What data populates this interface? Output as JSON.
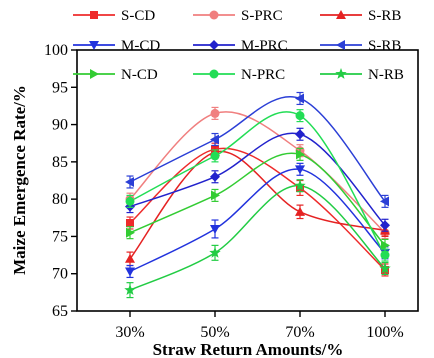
{
  "chart_data": {
    "type": "line",
    "title": "",
    "xlabel": "Straw Return Amounts/%",
    "ylabel": "Maize Emergence Rate/%",
    "categories": [
      "30%",
      "50%",
      "70%",
      "100%"
    ],
    "ylim": [
      65,
      100
    ],
    "yticks": [
      65,
      70,
      75,
      80,
      85,
      90,
      95,
      100
    ],
    "grid": false,
    "legend_position": "top",
    "series": [
      {
        "name": "S-CD",
        "color": "#ee2b2b",
        "marker": "square",
        "values": [
          76.8,
          86.7,
          81.5,
          70.5
        ],
        "error": [
          0.8,
          0.8,
          1.0,
          0.8
        ]
      },
      {
        "name": "S-PRC",
        "color": "#f07f7f",
        "marker": "circle",
        "values": [
          80.0,
          91.5,
          86.5,
          75.5
        ],
        "error": [
          0.8,
          0.8,
          0.8,
          0.8
        ]
      },
      {
        "name": "S-RB",
        "color": "#e52222",
        "marker": "triangle-up",
        "values": [
          72.0,
          86.3,
          78.3,
          75.8
        ],
        "error": [
          0.9,
          0.8,
          0.9,
          0.8
        ]
      },
      {
        "name": "M-CD",
        "color": "#2233dd",
        "marker": "triangle-down",
        "values": [
          70.3,
          76.0,
          84.0,
          72.8
        ],
        "error": [
          0.8,
          1.2,
          0.8,
          0.8
        ]
      },
      {
        "name": "M-PRC",
        "color": "#2222cc",
        "marker": "diamond",
        "values": [
          79.0,
          83.0,
          88.7,
          76.5
        ],
        "error": [
          0.8,
          0.8,
          0.8,
          0.8
        ]
      },
      {
        "name": "S-RB",
        "color": "#2b3fd6",
        "marker": "triangle-left",
        "values": [
          82.3,
          88.0,
          93.5,
          79.7
        ],
        "error": [
          0.8,
          0.8,
          0.8,
          0.8
        ]
      },
      {
        "name": "N-CD",
        "color": "#33cc33",
        "marker": "triangle-right",
        "values": [
          75.5,
          80.5,
          86.0,
          73.8
        ],
        "error": [
          0.8,
          0.8,
          0.8,
          0.8
        ]
      },
      {
        "name": "N-PRC",
        "color": "#22dd55",
        "marker": "circle",
        "values": [
          79.7,
          85.8,
          91.2,
          72.5
        ],
        "error": [
          0.8,
          0.8,
          0.8,
          0.8
        ]
      },
      {
        "name": "N-RB",
        "color": "#22cc44",
        "marker": "star",
        "values": [
          67.8,
          72.8,
          81.8,
          70.7
        ],
        "error": [
          1.0,
          1.0,
          0.8,
          0.8
        ]
      }
    ]
  }
}
